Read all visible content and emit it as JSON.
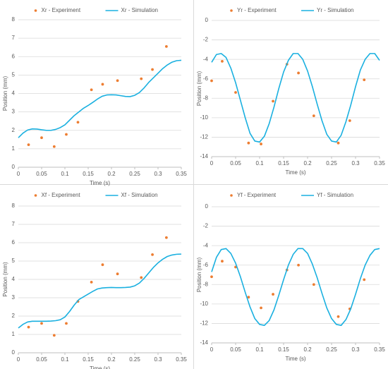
{
  "chart_data": [
    {
      "type": "line",
      "xlabel": "Time (s)",
      "ylabel": "Position (mm)",
      "xlim": [
        0,
        0.35
      ],
      "xticks": [
        0,
        0.05,
        0.1,
        0.15,
        0.2,
        0.25,
        0.3,
        0.35
      ],
      "ylim": [
        0,
        8
      ],
      "yticks": [
        0,
        1,
        2,
        3,
        4,
        5,
        6,
        7,
        8
      ],
      "grid": true,
      "legend": "top",
      "series": [
        {
          "name": "Xr - Experiment",
          "type": "scatter",
          "color": "#ed7d31",
          "x": [
            0.022,
            0.05,
            0.077,
            0.103,
            0.128,
            0.157,
            0.181,
            0.213,
            0.264,
            0.288,
            0.318
          ],
          "values": [
            1.22,
            1.6,
            1.12,
            1.78,
            2.44,
            4.2,
            4.5,
            4.7,
            4.8,
            5.3,
            6.55
          ]
        },
        {
          "name": "Xr - Simulation",
          "type": "line",
          "color": "#1ab0e0",
          "x": [
            0,
            0.01,
            0.02,
            0.03,
            0.04,
            0.05,
            0.06,
            0.07,
            0.08,
            0.09,
            0.1,
            0.11,
            0.12,
            0.13,
            0.14,
            0.15,
            0.16,
            0.17,
            0.18,
            0.19,
            0.2,
            0.21,
            0.22,
            0.23,
            0.24,
            0.25,
            0.26,
            0.27,
            0.28,
            0.29,
            0.3,
            0.31,
            0.32,
            0.33,
            0.34,
            0.35
          ],
          "values": [
            1.6,
            1.85,
            2.02,
            2.08,
            2.07,
            2.03,
            2.0,
            2.0,
            2.05,
            2.15,
            2.3,
            2.55,
            2.8,
            3.0,
            3.2,
            3.35,
            3.52,
            3.7,
            3.85,
            3.92,
            3.93,
            3.92,
            3.88,
            3.84,
            3.83,
            3.9,
            4.05,
            4.3,
            4.6,
            4.85,
            5.1,
            5.35,
            5.55,
            5.7,
            5.78,
            5.8
          ]
        }
      ]
    },
    {
      "type": "line",
      "xlabel": "Time (s)",
      "ylabel": "Position (mm)",
      "xlim": [
        0,
        0.35
      ],
      "xticks": [
        0,
        0.05,
        0.1,
        0.15,
        0.2,
        0.25,
        0.3,
        0.35
      ],
      "ylim": [
        -14,
        0
      ],
      "yticks": [
        -14,
        -12,
        -10,
        -8,
        -6,
        -4,
        -2,
        0
      ],
      "grid": true,
      "legend": "top",
      "series": [
        {
          "name": "Yr - Experiment",
          "type": "scatter",
          "color": "#ed7d31",
          "x": [
            0,
            0.022,
            0.05,
            0.077,
            0.103,
            0.128,
            0.157,
            0.181,
            0.213,
            0.264,
            0.288,
            0.318
          ],
          "values": [
            -6.2,
            -4.2,
            -7.4,
            -12.6,
            -12.7,
            -8.3,
            -4.5,
            -5.4,
            -9.8,
            -12.6,
            -10.3,
            -6.1
          ]
        },
        {
          "name": "Yr - Simulation",
          "type": "line",
          "color": "#1ab0e0",
          "x": [
            0,
            0.01,
            0.02,
            0.03,
            0.04,
            0.05,
            0.06,
            0.07,
            0.08,
            0.09,
            0.1,
            0.11,
            0.12,
            0.13,
            0.14,
            0.15,
            0.16,
            0.17,
            0.18,
            0.19,
            0.2,
            0.21,
            0.22,
            0.23,
            0.24,
            0.25,
            0.26,
            0.27,
            0.28,
            0.29,
            0.3,
            0.31,
            0.32,
            0.33,
            0.34,
            0.35
          ],
          "values": [
            -4.3,
            -3.5,
            -3.4,
            -3.8,
            -4.9,
            -6.4,
            -8.2,
            -10.0,
            -11.6,
            -12.4,
            -12.5,
            -11.9,
            -10.6,
            -8.9,
            -7.0,
            -5.3,
            -4.1,
            -3.4,
            -3.4,
            -4.0,
            -5.2,
            -6.8,
            -8.6,
            -10.3,
            -11.7,
            -12.4,
            -12.5,
            -11.8,
            -10.4,
            -8.7,
            -6.8,
            -5.1,
            -4.0,
            -3.4,
            -3.4,
            -4.1
          ]
        }
      ]
    },
    {
      "type": "line",
      "xlabel": "Time (s)",
      "ylabel": "Position (mm)",
      "xlim": [
        0,
        0.35
      ],
      "xticks": [
        0,
        0.05,
        0.1,
        0.15,
        0.2,
        0.25,
        0.3,
        0.35
      ],
      "ylim": [
        0,
        8
      ],
      "yticks": [
        0,
        1,
        2,
        3,
        4,
        5,
        6,
        7,
        8
      ],
      "grid": true,
      "legend": "top",
      "series": [
        {
          "name": "Xf - Experiment",
          "type": "scatter",
          "color": "#ed7d31",
          "x": [
            0.022,
            0.05,
            0.077,
            0.103,
            0.128,
            0.157,
            0.181,
            0.213,
            0.264,
            0.288,
            0.318
          ],
          "values": [
            1.4,
            1.6,
            0.95,
            1.6,
            2.8,
            3.85,
            4.8,
            4.3,
            4.1,
            5.35,
            6.28
          ]
        },
        {
          "name": "Xf - Simulation",
          "type": "line",
          "color": "#1ab0e0",
          "x": [
            0,
            0.01,
            0.02,
            0.03,
            0.04,
            0.05,
            0.06,
            0.07,
            0.08,
            0.09,
            0.1,
            0.11,
            0.12,
            0.13,
            0.14,
            0.15,
            0.16,
            0.17,
            0.18,
            0.19,
            0.2,
            0.21,
            0.22,
            0.23,
            0.24,
            0.25,
            0.26,
            0.27,
            0.28,
            0.29,
            0.3,
            0.31,
            0.32,
            0.33,
            0.34,
            0.35
          ],
          "values": [
            1.35,
            1.55,
            1.68,
            1.72,
            1.72,
            1.72,
            1.72,
            1.73,
            1.75,
            1.8,
            1.95,
            2.25,
            2.6,
            2.9,
            3.05,
            3.2,
            3.35,
            3.48,
            3.53,
            3.55,
            3.56,
            3.55,
            3.55,
            3.56,
            3.58,
            3.65,
            3.8,
            4.05,
            4.35,
            4.65,
            4.9,
            5.1,
            5.25,
            5.33,
            5.37,
            5.38
          ]
        }
      ]
    },
    {
      "type": "line",
      "xlabel": "Time (s)",
      "ylabel": "Position (mm)",
      "xlim": [
        0,
        0.35
      ],
      "xticks": [
        0,
        0.05,
        0.1,
        0.15,
        0.2,
        0.25,
        0.3,
        0.35
      ],
      "ylim": [
        -14,
        0
      ],
      "yticks": [
        -14,
        -12,
        -10,
        -8,
        -6,
        -4,
        -2,
        0
      ],
      "grid": true,
      "legend": "top",
      "series": [
        {
          "name": "Yf - Experiment",
          "type": "scatter",
          "color": "#ed7d31",
          "x": [
            0,
            0.022,
            0.05,
            0.077,
            0.103,
            0.128,
            0.157,
            0.181,
            0.213,
            0.264,
            0.288,
            0.318
          ],
          "values": [
            -7.2,
            -5.6,
            -6.2,
            -9.3,
            -10.4,
            -9.0,
            -6.5,
            -6.0,
            -8.0,
            -11.3,
            -10.5,
            -7.5
          ]
        },
        {
          "name": "Yf - Simulation",
          "type": "line",
          "color": "#1ab0e0",
          "x": [
            0,
            0.01,
            0.02,
            0.03,
            0.04,
            0.05,
            0.06,
            0.07,
            0.08,
            0.09,
            0.1,
            0.11,
            0.12,
            0.13,
            0.14,
            0.15,
            0.16,
            0.17,
            0.18,
            0.19,
            0.2,
            0.21,
            0.22,
            0.23,
            0.24,
            0.25,
            0.26,
            0.27,
            0.28,
            0.29,
            0.3,
            0.31,
            0.32,
            0.33,
            0.34,
            0.35
          ],
          "values": [
            -6.7,
            -5.2,
            -4.4,
            -4.3,
            -4.8,
            -5.8,
            -7.2,
            -8.8,
            -10.3,
            -11.5,
            -12.1,
            -12.2,
            -11.7,
            -10.6,
            -9.1,
            -7.5,
            -6.0,
            -4.9,
            -4.3,
            -4.3,
            -4.8,
            -5.9,
            -7.3,
            -8.9,
            -10.4,
            -11.5,
            -12.1,
            -12.2,
            -11.6,
            -10.5,
            -9.0,
            -7.4,
            -6.0,
            -5.0,
            -4.4,
            -4.3
          ]
        }
      ]
    }
  ]
}
